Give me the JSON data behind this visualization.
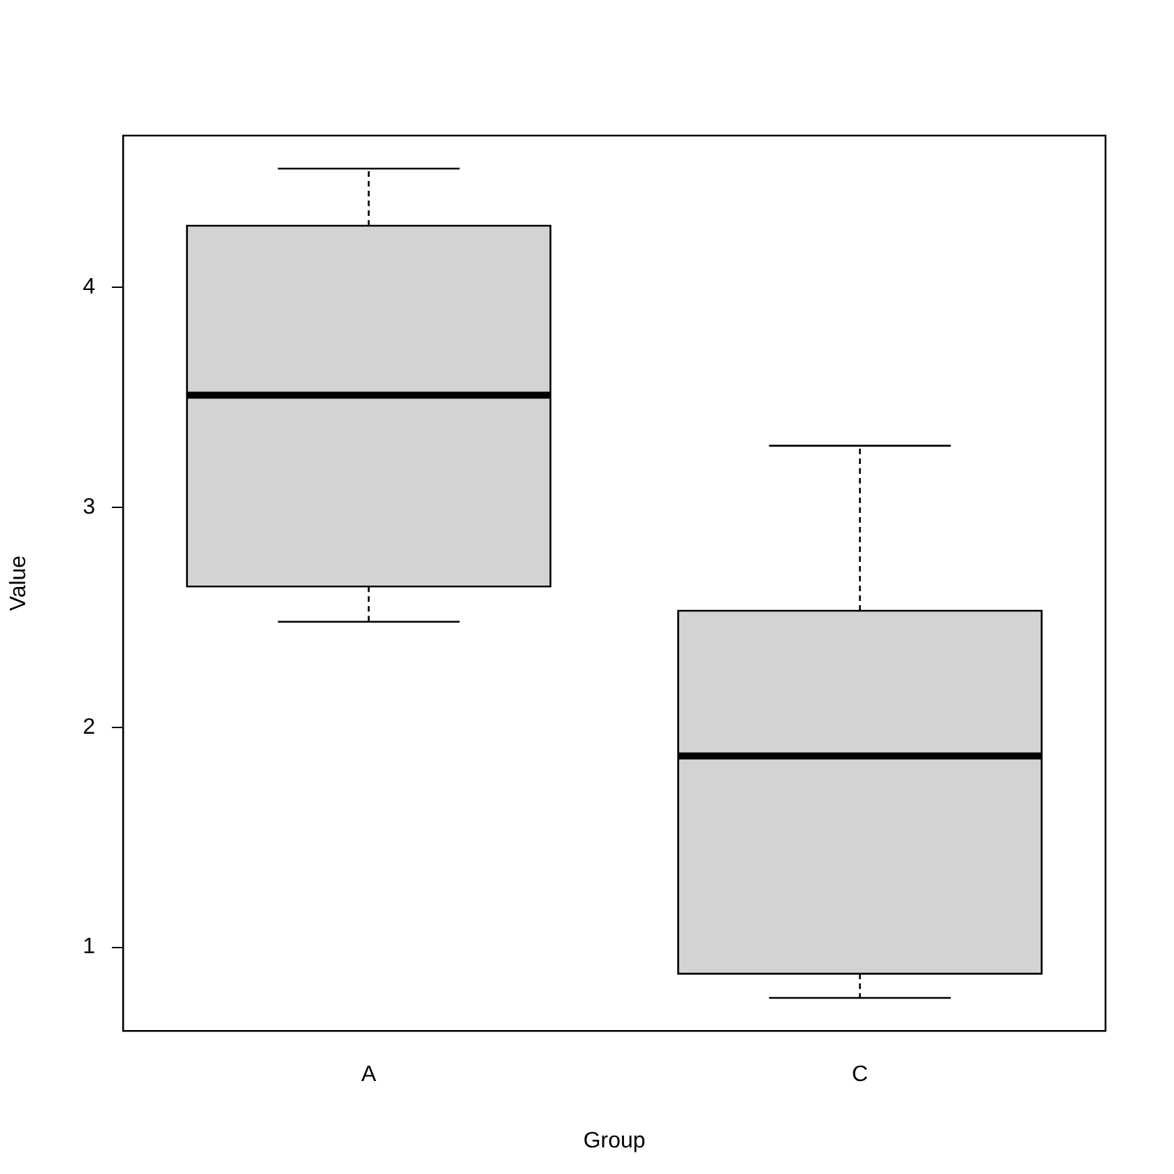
{
  "chart_data": {
    "type": "box",
    "xlabel": "Group",
    "ylabel": "Value",
    "categories": [
      "A",
      "C"
    ],
    "color": "#d3d3d3",
    "boxes": [
      {
        "low": 2.48,
        "q1": 2.64,
        "median": 3.51,
        "q3": 4.28,
        "high": 4.54
      },
      {
        "low": 0.77,
        "q1": 0.88,
        "median": 1.87,
        "q3": 2.53,
        "high": 3.28
      }
    ],
    "ylim": [
      0.62,
      4.69
    ],
    "yticks": [
      1,
      2,
      3,
      4
    ]
  }
}
